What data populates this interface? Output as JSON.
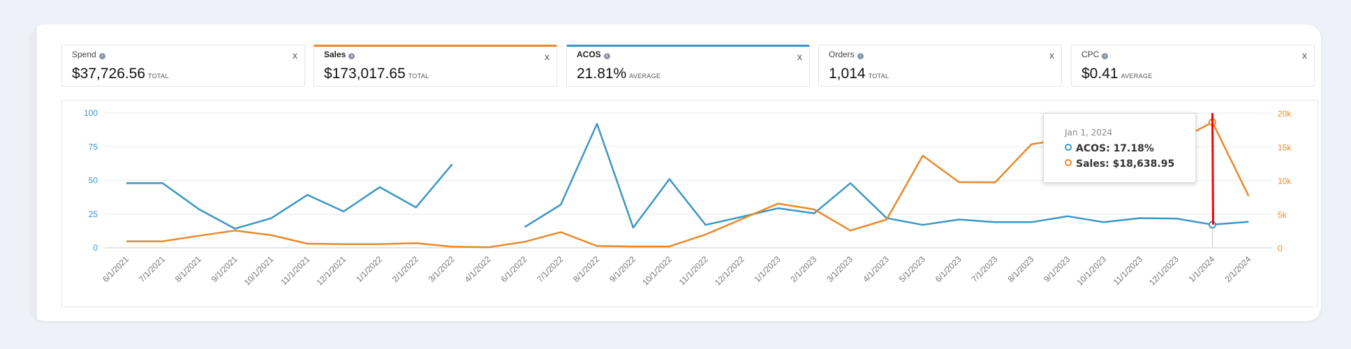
{
  "kpis": [
    {
      "name": "Spend",
      "value": "$37,726.56",
      "unit": "TOTAL",
      "selected": false
    },
    {
      "name": "Sales",
      "value": "$173,017.65",
      "unit": "TOTAL",
      "selected": true,
      "color": "#e8892a"
    },
    {
      "name": "ACOS",
      "value": "21.81%",
      "unit": "AVERAGE",
      "selected": true,
      "color": "#3a97c4"
    },
    {
      "name": "Orders",
      "value": "1,014",
      "unit": "TOTAL",
      "selected": false
    },
    {
      "name": "CPC",
      "value": "$0.41",
      "unit": "AVERAGE",
      "selected": false
    }
  ],
  "close_glyph": "x",
  "info_glyph": "i",
  "tooltip": {
    "date": "Jan 1, 2024",
    "acos": "ACOS: 17.18%",
    "sales": "Sales: $18,638.95"
  },
  "chart_data": {
    "type": "line",
    "categories": [
      "6/1/2021",
      "7/1/2021",
      "8/1/2021",
      "9/1/2021",
      "10/1/2021",
      "11/1/2021",
      "12/1/2021",
      "1/1/2022",
      "2/1/2022",
      "3/1/2022",
      "4/1/2022",
      "6/1/2022",
      "7/1/2022",
      "8/1/2022",
      "9/1/2022",
      "10/1/2022",
      "11/1/2022",
      "12/1/2022",
      "1/1/2023",
      "2/1/2023",
      "3/1/2023",
      "4/1/2023",
      "5/1/2023",
      "6/1/2023",
      "7/1/2023",
      "8/1/2023",
      "9/1/2023",
      "10/1/2023",
      "11/1/2023",
      "12/1/2023",
      "1/1/2024",
      "2/1/2024"
    ],
    "series": [
      {
        "name": "ACOS",
        "axis": "left",
        "color": "#3a97c4",
        "values": [
          48,
          48,
          28.7,
          14.2,
          21.9,
          39.3,
          27,
          45,
          30,
          62,
          null,
          15.4,
          32,
          92,
          15,
          51,
          17,
          23,
          29.4,
          25.6,
          48,
          22,
          17,
          21,
          19,
          19,
          23.4,
          19,
          22,
          21.7,
          17.18,
          19.3
        ]
      },
      {
        "name": "Sales",
        "axis": "right",
        "color": "#e8892a",
        "values": [
          960,
          960,
          1780,
          2560,
          1880,
          615,
          550,
          550,
          680,
          170,
          70,
          890,
          2320,
          270,
          200,
          200,
          1980,
          4270,
          6560,
          5700,
          2560,
          4200,
          13680,
          9740,
          9710,
          15380,
          16200,
          16500,
          15500,
          15800,
          18638.95,
          7690
        ]
      }
    ],
    "y_left": {
      "min": 0,
      "max": 100,
      "ticks": [
        "0",
        "25",
        "50",
        "75",
        "100"
      ],
      "color": "#3a97c4"
    },
    "y_right": {
      "min": 0,
      "max": 20000,
      "ticks": [
        "0",
        "5k",
        "10k",
        "15k",
        "20k"
      ],
      "color": "#e8892a"
    },
    "grid": true,
    "hover_category": "1/1/2024",
    "hover_line_color": "#ff0000"
  }
}
